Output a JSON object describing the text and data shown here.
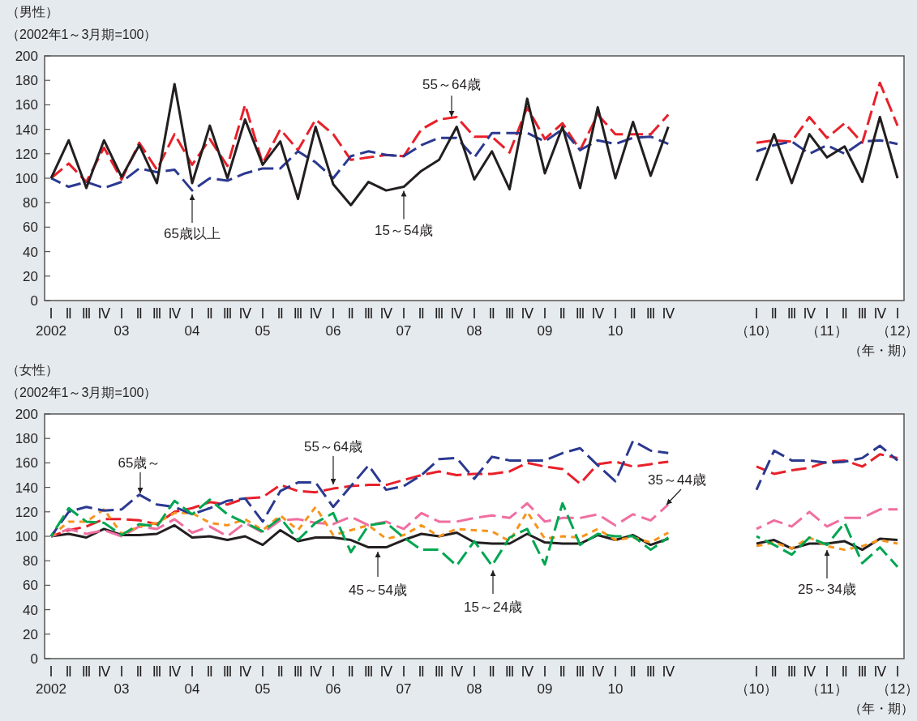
{
  "chart_data": [
    {
      "type": "line",
      "title": "（男性）",
      "ylabel": "（2002年1～3月期=100）",
      "xlabel": "（年・期）",
      "categories": [
        "Ⅰ\n2002",
        "Ⅱ",
        "Ⅲ",
        "Ⅳ",
        "Ⅰ\n03",
        "Ⅱ",
        "Ⅲ",
        "Ⅳ",
        "Ⅰ\n04",
        "Ⅱ",
        "Ⅲ",
        "Ⅳ",
        "Ⅰ\n05",
        "Ⅱ",
        "Ⅲ",
        "Ⅳ",
        "Ⅰ\n06",
        "Ⅱ",
        "Ⅲ",
        "Ⅳ",
        "Ⅰ\n07",
        "Ⅱ",
        "Ⅲ",
        "Ⅳ",
        "Ⅰ\n08",
        "Ⅱ",
        "Ⅲ",
        "Ⅳ",
        "Ⅰ\n09",
        "Ⅱ",
        "Ⅲ",
        "Ⅳ",
        "Ⅰ\n10",
        "Ⅱ",
        "Ⅲ",
        "Ⅳ",
        null,
        null,
        null,
        null,
        "Ⅰ\n（10）",
        "Ⅱ",
        "Ⅲ",
        "Ⅳ",
        "Ⅰ\n（11）",
        "Ⅱ",
        "Ⅲ",
        "Ⅳ",
        "Ⅰ\n（12）"
      ],
      "ylim": [
        0,
        200
      ],
      "yticks": [
        0,
        20,
        40,
        60,
        80,
        100,
        120,
        140,
        160,
        180,
        200
      ],
      "series": [
        {
          "color": "#e8202a",
          "line_style": "dashed",
          "values": [
            100,
            112,
            97,
            125,
            99,
            129,
            107,
            136,
            111,
            132,
            110,
            160,
            112,
            140,
            123,
            148,
            136,
            115,
            117,
            119,
            118,
            140,
            148,
            150,
            134,
            134,
            121,
            158,
            132,
            145,
            123,
            152,
            136,
            136,
            136,
            152,
            null,
            null,
            null,
            null,
            129,
            131,
            130,
            150,
            133,
            145,
            129,
            178,
            143
          ]
        },
        {
          "color": "#2b3990",
          "line_style": "dashed",
          "values": [
            100,
            93,
            97,
            92,
            97,
            108,
            105,
            107,
            90,
            100,
            98,
            104,
            108,
            108,
            122,
            113,
            100,
            118,
            122,
            119,
            118,
            127,
            133,
            133,
            117,
            137,
            137,
            137,
            130,
            140,
            123,
            131,
            128,
            133,
            134,
            128,
            null,
            null,
            null,
            null,
            122,
            127,
            130,
            120,
            127,
            120,
            130,
            131,
            128
          ]
        },
        {
          "color": "#231f20",
          "line_style": "solid",
          "values": [
            100,
            131,
            92,
            131,
            101,
            127,
            96,
            177,
            96,
            143,
            100,
            148,
            111,
            130,
            83,
            142,
            95,
            78,
            97,
            90,
            93,
            106,
            115,
            142,
            99,
            122,
            91,
            165,
            104,
            142,
            92,
            158,
            100,
            146,
            102,
            142,
            null,
            null,
            null,
            null,
            98,
            136,
            96,
            136,
            117,
            126,
            97,
            150,
            100
          ]
        }
      ],
      "annotations": [
        {
          "text": "65歳以上",
          "x": "Ⅰ\n04",
          "y": 90
        },
        {
          "text": "15～54歳",
          "x": "Ⅰ\n07",
          "y": 93
        },
        "55～64歳"
      ]
    },
    {
      "type": "line",
      "title": "（女性）",
      "ylabel": "（2002年1～3月期=100）",
      "xlabel": "（年・期）",
      "categories": [
        "Ⅰ\n2002",
        "Ⅱ",
        "Ⅲ",
        "Ⅳ",
        "Ⅰ\n03",
        "Ⅱ",
        "Ⅲ",
        "Ⅳ",
        "Ⅰ\n04",
        "Ⅱ",
        "Ⅲ",
        "Ⅳ",
        "Ⅰ\n05",
        "Ⅱ",
        "Ⅲ",
        "Ⅳ",
        "Ⅰ\n06",
        "Ⅱ",
        "Ⅲ",
        "Ⅳ",
        "Ⅰ\n07",
        "Ⅱ",
        "Ⅲ",
        "Ⅳ",
        "Ⅰ\n08",
        "Ⅱ",
        "Ⅲ",
        "Ⅳ",
        "Ⅰ\n09",
        "Ⅱ",
        "Ⅲ",
        "Ⅳ",
        "Ⅰ\n10",
        "Ⅱ",
        "Ⅲ",
        "Ⅳ",
        null,
        null,
        null,
        null,
        "Ⅰ\n（10）",
        "Ⅱ",
        "Ⅲ",
        "Ⅳ",
        "Ⅰ\n（11）",
        "Ⅱ",
        "Ⅲ",
        "Ⅳ",
        "Ⅰ\n（12）"
      ],
      "ylim": [
        0,
        200
      ],
      "yticks": [
        0,
        20,
        40,
        60,
        80,
        100,
        120,
        140,
        160,
        180,
        200
      ],
      "series": [
        {
          "color": "#231f20",
          "line_style": "solid",
          "values": [
            100,
            102,
            99,
            106,
            101,
            101,
            102,
            109,
            99,
            100,
            97,
            100,
            93,
            105,
            96,
            99,
            99,
            97,
            91,
            91,
            97,
            102,
            100,
            103,
            95,
            94,
            94,
            102,
            95,
            94,
            94,
            101,
            97,
            101,
            93,
            98,
            null,
            null,
            null,
            null,
            94,
            97,
            90,
            94,
            94,
            96,
            89,
            98,
            97
          ]
        },
        {
          "color": "#e8202a",
          "line_style": "dashed",
          "values": [
            100,
            105,
            108,
            114,
            114,
            113,
            110,
            120,
            123,
            128,
            126,
            131,
            132,
            142,
            137,
            136,
            139,
            141,
            142,
            142,
            146,
            150,
            153,
            150,
            151,
            151,
            153,
            160,
            157,
            155,
            143,
            159,
            161,
            157,
            159,
            161,
            null,
            null,
            null,
            null,
            157,
            151,
            154,
            156,
            161,
            162,
            157,
            167,
            164
          ]
        },
        {
          "color": "#f06ea0",
          "line_style": "dashed",
          "values": [
            100,
            106,
            102,
            105,
            100,
            108,
            106,
            114,
            103,
            108,
            100,
            111,
            103,
            113,
            114,
            111,
            110,
            116,
            109,
            112,
            106,
            119,
            112,
            112,
            115,
            117,
            115,
            127,
            112,
            115,
            115,
            118,
            109,
            118,
            113,
            126,
            null,
            null,
            null,
            null,
            106,
            113,
            108,
            120,
            108,
            115,
            115,
            122,
            122
          ]
        },
        {
          "color": "#f7941d",
          "line_style": "dotted",
          "values": [
            100,
            112,
            112,
            122,
            102,
            108,
            111,
            119,
            119,
            111,
            109,
            114,
            105,
            117,
            105,
            124,
            101,
            105,
            109,
            98,
            101,
            109,
            100,
            106,
            105,
            104,
            96,
            120,
            98,
            100,
            99,
            106,
            97,
            99,
            95,
            103,
            null,
            null,
            null,
            null,
            92,
            95,
            90,
            99,
            92,
            89,
            92,
            97,
            94
          ]
        },
        {
          "color": "#2b3990",
          "line_style": "dashed",
          "values": [
            100,
            120,
            124,
            121,
            122,
            134,
            126,
            124,
            118,
            123,
            129,
            131,
            112,
            137,
            144,
            144,
            124,
            141,
            158,
            138,
            141,
            150,
            163,
            164,
            147,
            165,
            162,
            162,
            162,
            168,
            172,
            158,
            145,
            178,
            170,
            168,
            null,
            null,
            null,
            null,
            138,
            170,
            162,
            162,
            160,
            161,
            164,
            174,
            162
          ]
        },
        {
          "color": "#00a651",
          "line_style": "dashed",
          "values": [
            100,
            123,
            112,
            111,
            101,
            110,
            108,
            129,
            118,
            130,
            118,
            111,
            104,
            115,
            97,
            111,
            119,
            87,
            109,
            111,
            99,
            89,
            89,
            76,
            96,
            76,
            99,
            106,
            77,
            127,
            93,
            102,
            100,
            100,
            89,
            99,
            null,
            null,
            null,
            null,
            100,
            93,
            85,
            99,
            93,
            111,
            78,
            91,
            75
          ]
        }
      ],
      "annotations": [
        "65歳～",
        {
          "text": "55～64歳",
          "x": "Ⅰ\n06",
          "y": 139
        },
        "45～54歳",
        "15～24歳",
        "35～44歳",
        {
          "text": "25～34歳",
          "x": "Ⅰ\n（11）",
          "y": 92
        }
      ]
    }
  ]
}
